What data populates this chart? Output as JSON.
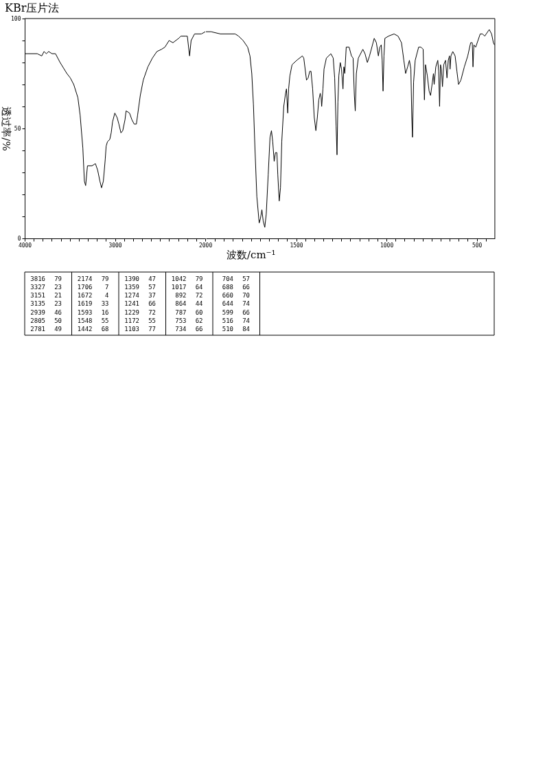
{
  "chart_data": [
    {
      "type": "line",
      "title": "KBr压片法",
      "ylabel": "透过率/%",
      "color": "#000000",
      "grid": false,
      "xlim": [
        4000,
        2000
      ],
      "ylim": [
        0,
        100
      ],
      "xticks": [
        4000,
        {
          "value": 3900,
          "label": null
        },
        {
          "value": 3800,
          "label": null
        },
        {
          "value": 3700,
          "label": null
        },
        {
          "value": 3600,
          "label": null
        },
        {
          "value": 3500,
          "label": null
        },
        {
          "value": 3400,
          "label": null
        },
        {
          "value": 3300,
          "label": null
        },
        {
          "value": 3200,
          "label": null
        },
        {
          "value": 3100,
          "label": null
        },
        3000,
        {
          "value": 2900,
          "label": null
        },
        {
          "value": 2800,
          "label": null
        },
        {
          "value": 2700,
          "label": null
        },
        {
          "value": 2600,
          "label": null
        },
        {
          "value": 2500,
          "label": null
        },
        {
          "value": 2400,
          "label": null
        },
        {
          "value": 2300,
          "label": null
        },
        {
          "value": 2200,
          "label": null
        },
        {
          "value": 2100,
          "label": null
        },
        2000
      ],
      "yticks": [
        0,
        {
          "value": 10,
          "label": null
        },
        {
          "value": 20,
          "label": null
        },
        {
          "value": 30,
          "label": null
        },
        {
          "value": 40,
          "label": null
        },
        50,
        {
          "value": 60,
          "label": null
        },
        {
          "value": 70,
          "label": null
        },
        {
          "value": 80,
          "label": null
        },
        {
          "value": 90,
          "label": null
        },
        100
      ],
      "x": [
        4000,
        3962,
        3861,
        3811,
        3786,
        3760,
        3735,
        3697,
        3659,
        3608,
        3533,
        3495,
        3457,
        3411,
        3386,
        3356,
        3339,
        3325,
        3305,
        3255,
        3217,
        3192,
        3167,
        3149,
        3129,
        3108,
        3098,
        3083,
        3058,
        3042,
        3027,
        3002,
        2977,
        2957,
        2934,
        2914,
        2889,
        2877,
        2839,
        2813,
        2788,
        2763,
        2750,
        2720,
        2687,
        2636,
        2586,
        2536,
        2485,
        2447,
        2401,
        2358,
        2295,
        2270,
        2220,
        2199,
        2174,
        2157,
        2119,
        2043,
        2000
      ],
      "values": [
        84,
        84,
        84,
        83,
        85,
        84,
        85,
        84,
        84,
        80,
        75,
        73,
        70,
        64,
        56,
        41,
        26,
        24,
        33,
        33,
        34,
        31,
        26,
        23,
        26,
        36,
        42,
        44,
        45,
        48,
        53,
        57,
        55,
        52,
        48,
        49,
        54,
        58,
        57,
        54,
        52,
        52,
        56,
        65,
        72,
        78,
        82,
        85,
        86,
        87,
        90,
        89,
        91,
        92,
        92,
        92,
        83,
        90,
        93,
        93,
        94
      ],
      "annotations": [
        "3816",
        "79",
        "3327",
        "23",
        "3151",
        "21",
        "3135",
        "23",
        "2939",
        "46",
        "2805",
        "50",
        "2781",
        "49",
        "2174",
        "79",
        "1706",
        "7",
        "1672",
        "4",
        "1619",
        "33",
        "1593",
        "16",
        "1548",
        "55",
        "1442",
        "68",
        "1390",
        "47",
        "1359",
        "57",
        "1274",
        "37",
        "1241",
        "66",
        "1229",
        "72",
        "1172",
        "55",
        "1103",
        "77",
        "1042",
        "79",
        "1017",
        "64",
        "892",
        "72",
        "864",
        "44",
        "787",
        "60",
        "753",
        "62",
        "734",
        "66",
        "704",
        "57",
        "688",
        "66",
        "660",
        "70",
        "644",
        "74",
        "599",
        "66",
        "516",
        "74",
        "510",
        "84"
      ]
    },
    {
      "type": "line",
      "xlabel": "波数/cm⁻¹",
      "color": "#000000",
      "grid": false,
      "tick_labels": "x",
      "xlim": [
        2000,
        400
      ],
      "ylim": [
        0,
        100
      ],
      "xticks": [
        {
          "value": 1950,
          "label": null
        },
        {
          "value": 1900,
          "label": null
        },
        {
          "value": 1850,
          "label": null
        },
        {
          "value": 1800,
          "label": null
        },
        {
          "value": 1750,
          "label": null
        },
        {
          "value": 1700,
          "label": null
        },
        {
          "value": 1650,
          "label": null
        },
        {
          "value": 1600,
          "label": null
        },
        {
          "value": 1550,
          "label": null
        },
        1500,
        {
          "value": 1450,
          "label": null
        },
        {
          "value": 1400,
          "label": null
        },
        {
          "value": 1350,
          "label": null
        },
        {
          "value": 1300,
          "label": null
        },
        {
          "value": 1250,
          "label": null
        },
        {
          "value": 1200,
          "label": null
        },
        {
          "value": 1150,
          "label": null
        },
        {
          "value": 1100,
          "label": null
        },
        {
          "value": 1050,
          "label": null
        },
        1000,
        {
          "value": 950,
          "label": null
        },
        {
          "value": 900,
          "label": null
        },
        {
          "value": 850,
          "label": null
        },
        {
          "value": 800,
          "label": null
        },
        {
          "value": 750,
          "label": null
        },
        {
          "value": 700,
          "label": null
        },
        {
          "value": 650,
          "label": null
        },
        {
          "value": 600,
          "label": null
        },
        {
          "value": 550,
          "label": null
        },
        500,
        {
          "value": 450,
          "label": null
        }
      ],
      "x": [
        2000,
        1971,
        1920,
        1838,
        1819,
        1794,
        1769,
        1756,
        1746,
        1737,
        1728,
        1718,
        1705,
        1698,
        1690,
        1683,
        1674,
        1666,
        1655,
        1645,
        1637,
        1630,
        1622,
        1615,
        1607,
        1602,
        1594,
        1587,
        1580,
        1569,
        1559,
        1554,
        1547,
        1542,
        1535,
        1523,
        1497,
        1466,
        1458,
        1443,
        1434,
        1425,
        1418,
        1409,
        1400,
        1391,
        1383,
        1375,
        1367,
        1362,
        1359,
        1352,
        1346,
        1333,
        1308,
        1295,
        1287,
        1279,
        1274,
        1269,
        1264,
        1256,
        1249,
        1241,
        1236,
        1231,
        1223,
        1207,
        1194,
        1185,
        1178,
        1173,
        1167,
        1156,
        1131,
        1119,
        1106,
        1094,
        1068,
        1056,
        1045,
        1037,
        1029,
        1024,
        1019,
        1014,
        1009,
        989,
        958,
        936,
        917,
        904,
        894,
        883,
        873,
        865,
        860,
        856,
        850,
        841,
        822,
        809,
        797,
        790,
        784,
        774,
        764,
        756,
        746,
        740,
        736,
        727,
        716,
        711,
        706,
        701,
        696,
        690,
        683,
        673,
        665,
        658,
        651,
        648,
        643,
        633,
        620,
        610,
        601,
        588,
        569,
        550,
        534,
        525,
        521,
        516,
        506,
        481,
        468,
        456,
        431,
        418,
        408,
        402
      ],
      "values": [
        94,
        94,
        93,
        93,
        92,
        90,
        87,
        83,
        75,
        61,
        40,
        19,
        7,
        9,
        13,
        8,
        5,
        11,
        29,
        46,
        49,
        44,
        35,
        39,
        39,
        29,
        17,
        23,
        44,
        60,
        66,
        68,
        57,
        68,
        74,
        79,
        81,
        83,
        82,
        72,
        73,
        76,
        76,
        68,
        55,
        49,
        55,
        63,
        66,
        64,
        60,
        68,
        77,
        82,
        84,
        82,
        73,
        51,
        38,
        62,
        74,
        80,
        77,
        68,
        78,
        75,
        87,
        87,
        83,
        82,
        65,
        58,
        75,
        82,
        86,
        84,
        80,
        83,
        91,
        89,
        83,
        87,
        88,
        81,
        67,
        83,
        91,
        92,
        93,
        92,
        89,
        81,
        75,
        78,
        81,
        77,
        55,
        46,
        71,
        81,
        87,
        87,
        86,
        63,
        79,
        74,
        67,
        65,
        71,
        75,
        70,
        78,
        81,
        76,
        60,
        79,
        77,
        69,
        79,
        81,
        73,
        81,
        83,
        77,
        83,
        85,
        83,
        76,
        70,
        72,
        78,
        83,
        89,
        89,
        78,
        88,
        87,
        93,
        93,
        92,
        95,
        93,
        89,
        88
      ]
    }
  ]
}
